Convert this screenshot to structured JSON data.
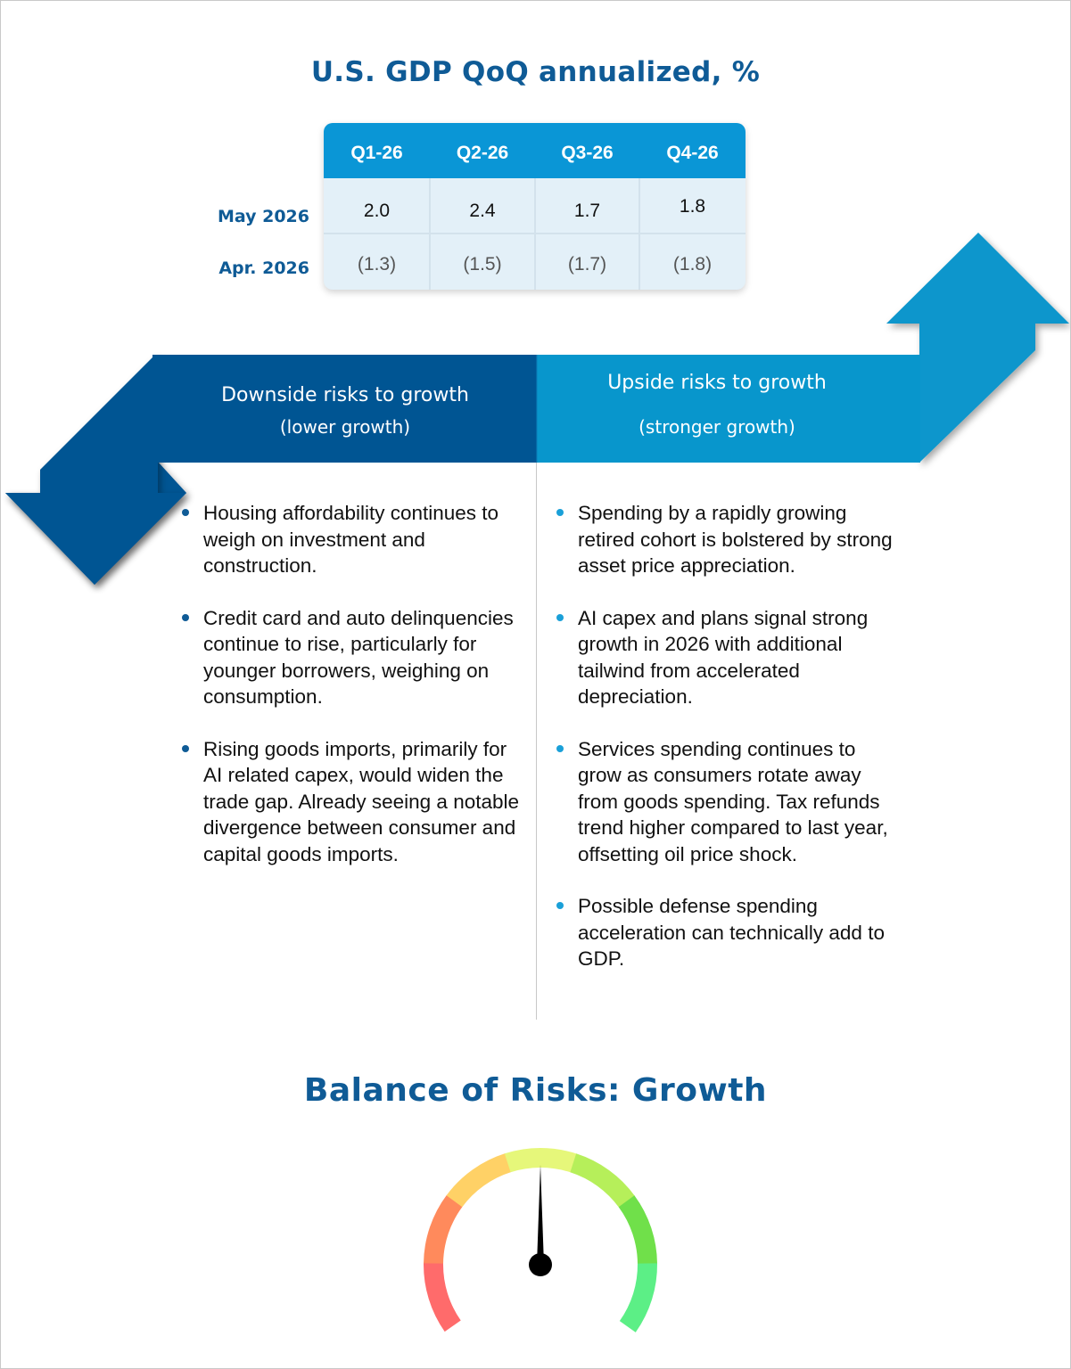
{
  "gdp_table": {
    "title": "U.S. GDP QoQ annualized, %",
    "columns": [
      "Q1-26",
      "Q2-26",
      "Q3-26",
      "Q4-26"
    ],
    "rows": [
      {
        "label": "May 2026",
        "values": [
          "2.0",
          "2.4",
          "1.7",
          "1.8"
        ]
      },
      {
        "label": "Apr. 2026",
        "values": [
          "(1.3)",
          "(1.5)",
          "(1.7)",
          "(1.8)"
        ]
      }
    ]
  },
  "banner": {
    "downside_title": "Downside risks to growth",
    "downside_subtitle": "(lower  growth)",
    "upside_title": "Upside risks to growth",
    "upside_subtitle": "(stronger growth)",
    "colors": {
      "downside": "#005593",
      "upside": "#0896cc"
    }
  },
  "downside_risks": [
    "Housing affordability continues to weigh on investment and construction.",
    "Credit card and auto delinquencies continue to rise, particularly for younger borrowers, weighing on consumption.",
    "Rising goods imports, primarily for AI related capex, would widen the trade gap. Already seeing a notable divergence between consumer and capital goods imports."
  ],
  "upside_risks": [
    "Spending by a rapidly growing retired cohort is bolstered by strong asset price appreciation.",
    "AI capex and plans signal strong growth in 2026 with additional tailwind from accelerated depreciation.",
    "Services spending continues to grow as consumers rotate away from goods spending. Tax refunds trend higher compared to last year, offsetting oil price shock.",
    "Possible defense spending acceleration can technically add to GDP."
  ],
  "balance": {
    "title": "Balance of Risks: Growth",
    "needle_level": 0.5,
    "segment_colors": [
      "#ff6b6b",
      "#ff8a5c",
      "#ffd166",
      "#e6f77a",
      "#b6ef5a",
      "#70e04a",
      "#5cef86"
    ]
  }
}
